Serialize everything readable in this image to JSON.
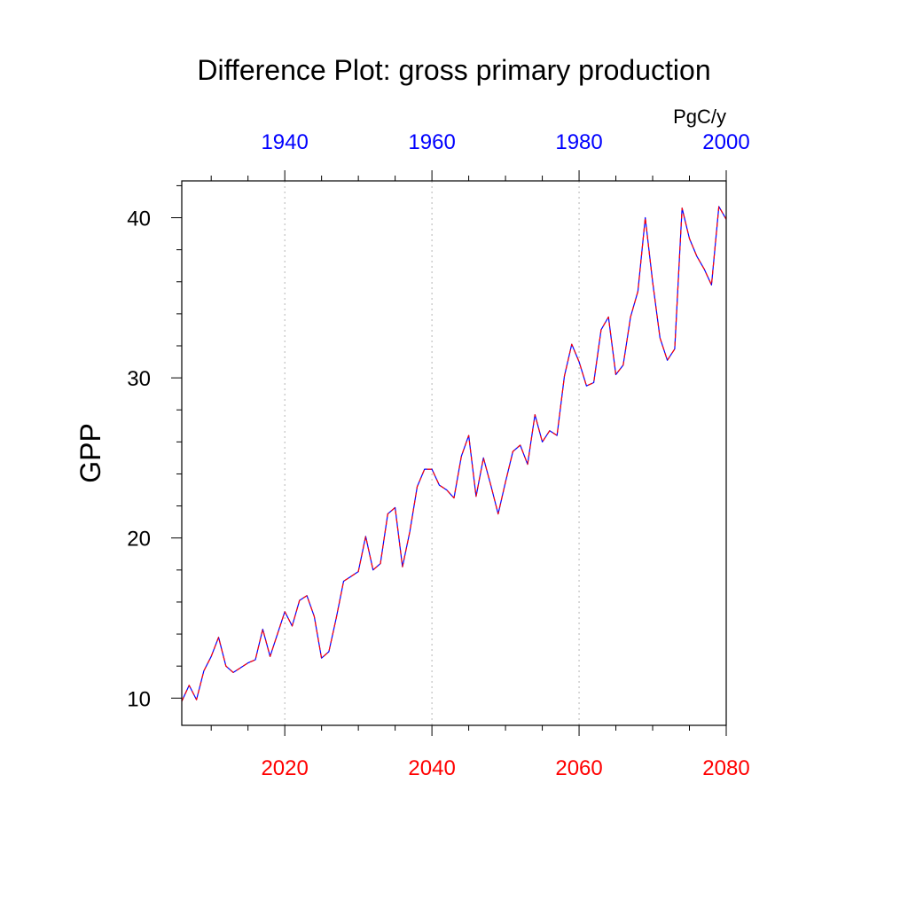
{
  "chart_data": {
    "type": "line",
    "title": "Difference Plot: gross primary production",
    "units": "PgC/y",
    "ylabel": "GPP",
    "xlim": [
      2006,
      2080
    ],
    "ylim": [
      8.3,
      42.3
    ],
    "grid": "vertical dotted at bottom-axis major ticks",
    "x_bottom": {
      "color": "#ff0000",
      "ticks": [
        2020,
        2040,
        2060,
        2080
      ],
      "tick_labels": [
        "2020",
        "2040",
        "2060",
        "2080"
      ]
    },
    "x_top": {
      "color": "#0000ff",
      "ticks": [
        1940,
        1960,
        1980,
        2000
      ],
      "tick_labels": [
        "1940",
        "1960",
        "1980",
        "2000"
      ],
      "offset_years": -80
    },
    "y_ticks": [
      10,
      20,
      30,
      40
    ],
    "y_tick_labels": [
      "10",
      "20",
      "30",
      "40"
    ],
    "series": [
      {
        "line_color": "#0000ff",
        "dash_color": "#ff0000",
        "x": [
          2006,
          2007,
          2008,
          2009,
          2010,
          2011,
          2012,
          2013,
          2014,
          2015,
          2016,
          2017,
          2018,
          2019,
          2020,
          2021,
          2022,
          2023,
          2024,
          2025,
          2026,
          2027,
          2028,
          2029,
          2030,
          2031,
          2032,
          2033,
          2034,
          2035,
          2036,
          2037,
          2038,
          2039,
          2040,
          2041,
          2042,
          2043,
          2044,
          2045,
          2046,
          2047,
          2048,
          2049,
          2050,
          2051,
          2052,
          2053,
          2054,
          2055,
          2056,
          2057,
          2058,
          2059,
          2060,
          2061,
          2062,
          2063,
          2064,
          2065,
          2066,
          2067,
          2068,
          2069,
          2070,
          2071,
          2072,
          2073,
          2074,
          2075,
          2076,
          2077,
          2078,
          2079,
          2080
        ],
        "y": [
          9.8,
          10.8,
          9.9,
          11.7,
          12.6,
          13.8,
          12.0,
          11.6,
          11.9,
          12.2,
          12.4,
          14.3,
          12.6,
          14.0,
          15.4,
          14.5,
          16.1,
          16.4,
          15.1,
          12.5,
          12.9,
          15.0,
          17.3,
          17.6,
          17.9,
          20.1,
          18.0,
          18.4,
          21.5,
          21.9,
          18.2,
          20.4,
          23.2,
          24.3,
          24.3,
          23.3,
          23.0,
          22.5,
          25.1,
          26.4,
          22.6,
          25.0,
          23.3,
          21.5,
          23.5,
          25.4,
          25.8,
          24.6,
          27.7,
          26.0,
          26.7,
          26.4,
          30.1,
          32.1,
          31.0,
          29.5,
          29.7,
          33.0,
          33.8,
          30.2,
          30.8,
          33.8,
          35.4,
          40.0,
          36.0,
          32.5,
          31.1,
          31.8,
          40.6,
          38.7,
          37.6,
          36.8,
          35.8,
          40.7,
          39.9
        ]
      }
    ]
  }
}
